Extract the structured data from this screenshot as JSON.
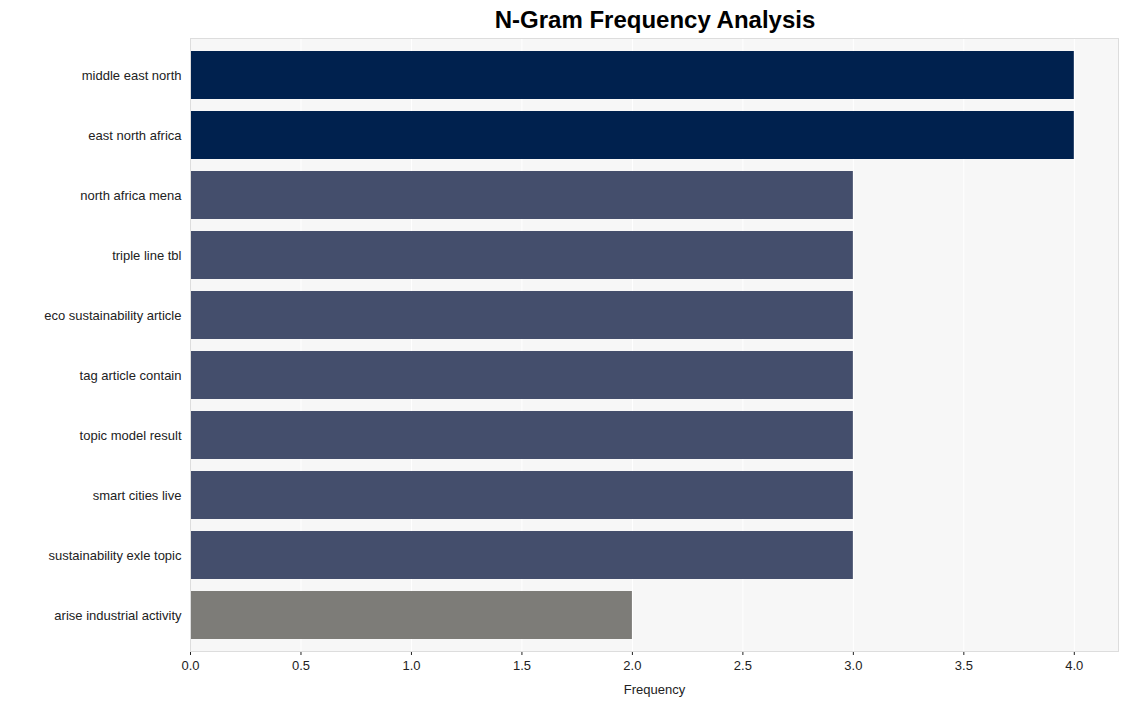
{
  "chart_data": {
    "type": "bar",
    "orientation": "horizontal",
    "title": "N-Gram Frequency Analysis",
    "x_label": "Frequency",
    "categories": [
      "middle east north",
      "east north africa",
      "north africa mena",
      "triple line tbl",
      "eco sustainability article",
      "tag article contain",
      "topic model result",
      "smart cities live",
      "sustainability exle topic",
      "arise industrial activity"
    ],
    "values": [
      4,
      4,
      3,
      3,
      3,
      3,
      3,
      3,
      3,
      2
    ],
    "colors": [
      "#00214e",
      "#00214e",
      "#444e6c",
      "#444e6c",
      "#444e6c",
      "#444e6c",
      "#444e6c",
      "#444e6c",
      "#444e6c",
      "#7d7c78"
    ],
    "xlim": [
      0,
      4.2
    ],
    "xticks": [
      {
        "value": 0,
        "label": "0.0"
      },
      {
        "value": 0.5,
        "label": "0.5"
      },
      {
        "value": 1,
        "label": "1.0"
      },
      {
        "value": 1.5,
        "label": "1.5"
      },
      {
        "value": 2,
        "label": "2.0"
      },
      {
        "value": 2.5,
        "label": "2.5"
      },
      {
        "value": 3,
        "label": "3.0"
      },
      {
        "value": 3.5,
        "label": "3.5"
      },
      {
        "value": 4,
        "label": "4.0"
      }
    ],
    "grid": true
  }
}
